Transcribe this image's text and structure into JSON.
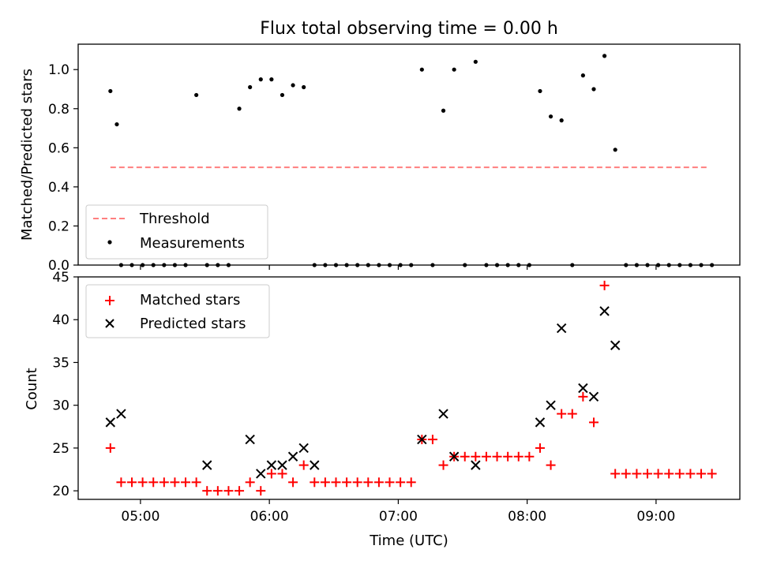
{
  "figure": {
    "title": "Flux total observing time = 0.00 h",
    "xlabel": "Time (UTC)"
  },
  "chart_data": [
    {
      "type": "scatter",
      "ylabel": "Matched/Predicted stars",
      "xlim": [
        "04:31",
        "09:39"
      ],
      "ylim": [
        0,
        1.13
      ],
      "yticks": [
        "0.0",
        "0.2",
        "0.4",
        "0.6",
        "0.8",
        "1.0"
      ],
      "xticks": [
        "05:00",
        "06:00",
        "07:00",
        "08:00",
        "09:00"
      ],
      "xticklabels_visible": false,
      "legend_location": "lower left",
      "series": [
        {
          "name": "Threshold",
          "style": "dashed-line",
          "color": "#ff7f7f",
          "x": [
            "04:46",
            "09:24"
          ],
          "y": [
            0.5,
            0.5
          ]
        },
        {
          "name": "Measurements",
          "style": "dot",
          "color": "#000000",
          "x": [
            "04:46",
            "04:49",
            "04:51",
            "04:56",
            "05:01",
            "05:06",
            "05:11",
            "05:16",
            "05:21",
            "05:26",
            "05:31",
            "05:36",
            "05:41",
            "05:46",
            "05:51",
            "05:56",
            "06:01",
            "06:06",
            "06:11",
            "06:16",
            "06:21",
            "06:26",
            "06:31",
            "06:36",
            "06:41",
            "06:46",
            "06:51",
            "06:56",
            "07:01",
            "07:06",
            "07:11",
            "07:16",
            "07:21",
            "07:26",
            "07:31",
            "07:36",
            "07:41",
            "07:46",
            "07:51",
            "07:56",
            "08:01",
            "08:06",
            "08:11",
            "08:16",
            "08:21",
            "08:26",
            "08:31",
            "08:36",
            "08:41",
            "08:46",
            "08:51",
            "08:56",
            "09:01",
            "09:06",
            "09:11",
            "09:16",
            "09:21",
            "09:26"
          ],
          "y": [
            0.89,
            0.72,
            0.0,
            0.0,
            0.0,
            0.0,
            0.0,
            0.0,
            0.0,
            0.87,
            0.0,
            0.0,
            0.0,
            0.8,
            0.91,
            0.95,
            0.95,
            0.87,
            0.92,
            0.91,
            0.0,
            0.0,
            0.0,
            0.0,
            0.0,
            0.0,
            0.0,
            0.0,
            0.0,
            0.0,
            1.0,
            0.0,
            0.79,
            1.0,
            0.0,
            1.04,
            0.0,
            0.0,
            0.0,
            0.0,
            0.0,
            0.89,
            0.76,
            0.74,
            0.0,
            0.97,
            0.9,
            1.07,
            0.59,
            0.0,
            0.0,
            0.0,
            0.0,
            0.0,
            0.0,
            0.0,
            0.0,
            0.0
          ]
        }
      ]
    },
    {
      "type": "scatter",
      "ylabel": "Count",
      "xlim": [
        "04:31",
        "09:39"
      ],
      "ylim": [
        19,
        45
      ],
      "yticks": [
        "20",
        "25",
        "30",
        "35",
        "40",
        "45"
      ],
      "xticks": [
        "05:00",
        "06:00",
        "07:00",
        "08:00",
        "09:00"
      ],
      "legend_location": "upper left",
      "series": [
        {
          "name": "Matched stars",
          "marker": "+",
          "color": "#ff0000",
          "x": [
            "04:46",
            "04:51",
            "04:56",
            "05:01",
            "05:06",
            "05:11",
            "05:16",
            "05:21",
            "05:26",
            "05:31",
            "05:36",
            "05:41",
            "05:46",
            "05:51",
            "05:56",
            "06:01",
            "06:06",
            "06:11",
            "06:16",
            "06:21",
            "06:26",
            "06:31",
            "06:36",
            "06:41",
            "06:46",
            "06:51",
            "06:56",
            "07:01",
            "07:06",
            "07:11",
            "07:16",
            "07:21",
            "07:26",
            "07:31",
            "07:36",
            "07:41",
            "07:46",
            "07:51",
            "07:56",
            "08:01",
            "08:06",
            "08:11",
            "08:16",
            "08:21",
            "08:26",
            "08:31",
            "08:36",
            "08:41",
            "08:46",
            "08:51",
            "08:56",
            "09:01",
            "09:06",
            "09:11",
            "09:16",
            "09:21",
            "09:26"
          ],
          "y": [
            25,
            21,
            21,
            21,
            21,
            21,
            21,
            21,
            21,
            20,
            20,
            20,
            20,
            21,
            20,
            22,
            22,
            21,
            23,
            21,
            21,
            21,
            21,
            21,
            21,
            21,
            21,
            21,
            21,
            26,
            26,
            23,
            24,
            24,
            24,
            24,
            24,
            24,
            24,
            24,
            25,
            23,
            29,
            29,
            31,
            28,
            44,
            22,
            22,
            22,
            22,
            22,
            22,
            22,
            22,
            22,
            22
          ]
        },
        {
          "name": "Predicted stars",
          "marker": "x",
          "color": "#000000",
          "x": [
            "04:46",
            "04:51",
            "05:31",
            "05:51",
            "05:56",
            "06:01",
            "06:06",
            "06:11",
            "06:16",
            "06:21",
            "07:11",
            "07:21",
            "07:26",
            "07:36",
            "08:06",
            "08:11",
            "08:16",
            "08:26",
            "08:31",
            "08:36",
            "08:41"
          ],
          "y": [
            28,
            29,
            23,
            26,
            22,
            23,
            23,
            24,
            25,
            23,
            26,
            29,
            24,
            23,
            28,
            30,
            39,
            32,
            31,
            41,
            37
          ]
        }
      ]
    }
  ]
}
